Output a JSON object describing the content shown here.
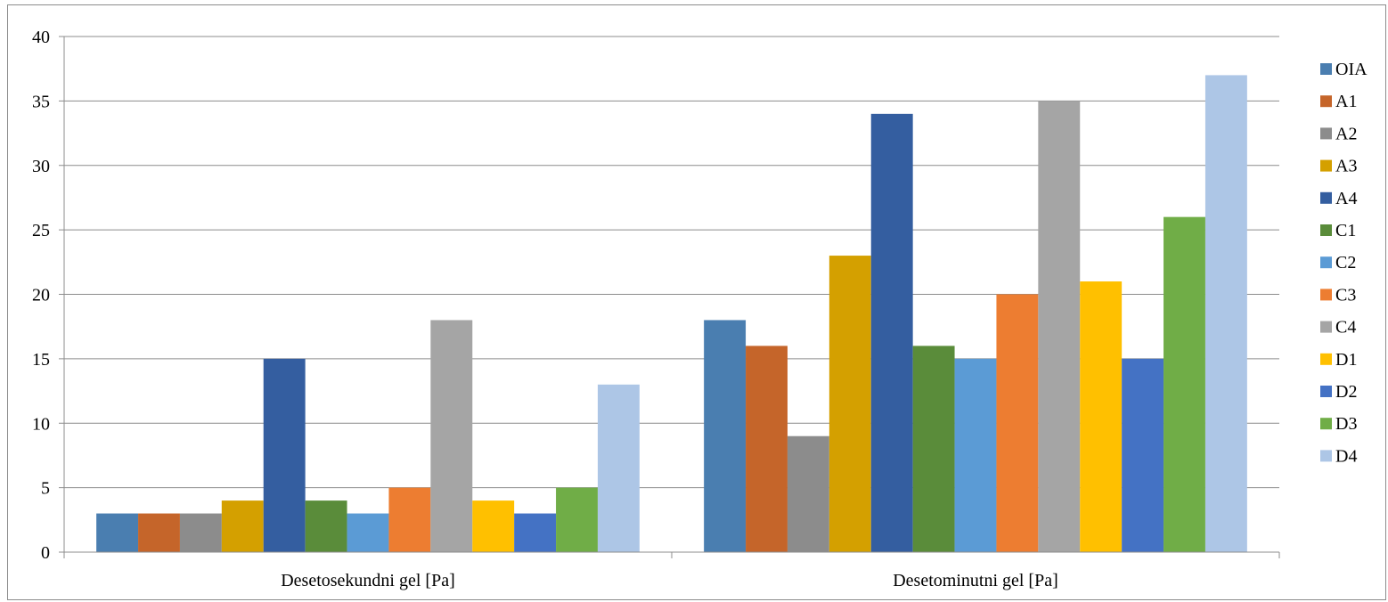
{
  "chart_data": {
    "type": "bar",
    "title": "",
    "xlabel": "",
    "ylabel": "",
    "ylim": [
      0,
      40
    ],
    "yticks": [
      0,
      5,
      10,
      15,
      20,
      25,
      30,
      35,
      40
    ],
    "grid": true,
    "legend_position": "right",
    "categories": [
      "Desetosekundni gel [Pa]",
      "Desetominutni gel [Pa]"
    ],
    "series": [
      {
        "name": "OIA",
        "color": "#4a7eb0",
        "values": [
          3,
          18
        ]
      },
      {
        "name": "A1",
        "color": "#c5652a",
        "values": [
          3,
          16
        ]
      },
      {
        "name": "A2",
        "color": "#8c8c8c",
        "values": [
          3,
          9
        ]
      },
      {
        "name": "A3",
        "color": "#d4a000",
        "values": [
          4,
          23
        ]
      },
      {
        "name": "A4",
        "color": "#345ea0",
        "values": [
          15,
          34
        ]
      },
      {
        "name": "C1",
        "color": "#5a8c3a",
        "values": [
          4,
          16
        ]
      },
      {
        "name": "C2",
        "color": "#5b9bd5",
        "values": [
          3,
          15
        ]
      },
      {
        "name": "C3",
        "color": "#ed7d31",
        "values": [
          5,
          20
        ]
      },
      {
        "name": "C4",
        "color": "#a5a5a5",
        "values": [
          18,
          35
        ]
      },
      {
        "name": "D1",
        "color": "#ffc000",
        "values": [
          4,
          21
        ]
      },
      {
        "name": "D2",
        "color": "#4472c4",
        "values": [
          3,
          15
        ]
      },
      {
        "name": "D3",
        "color": "#70ad47",
        "values": [
          5,
          26
        ]
      },
      {
        "name": "D4",
        "color": "#adc6e6",
        "values": [
          13,
          37
        ]
      }
    ]
  }
}
